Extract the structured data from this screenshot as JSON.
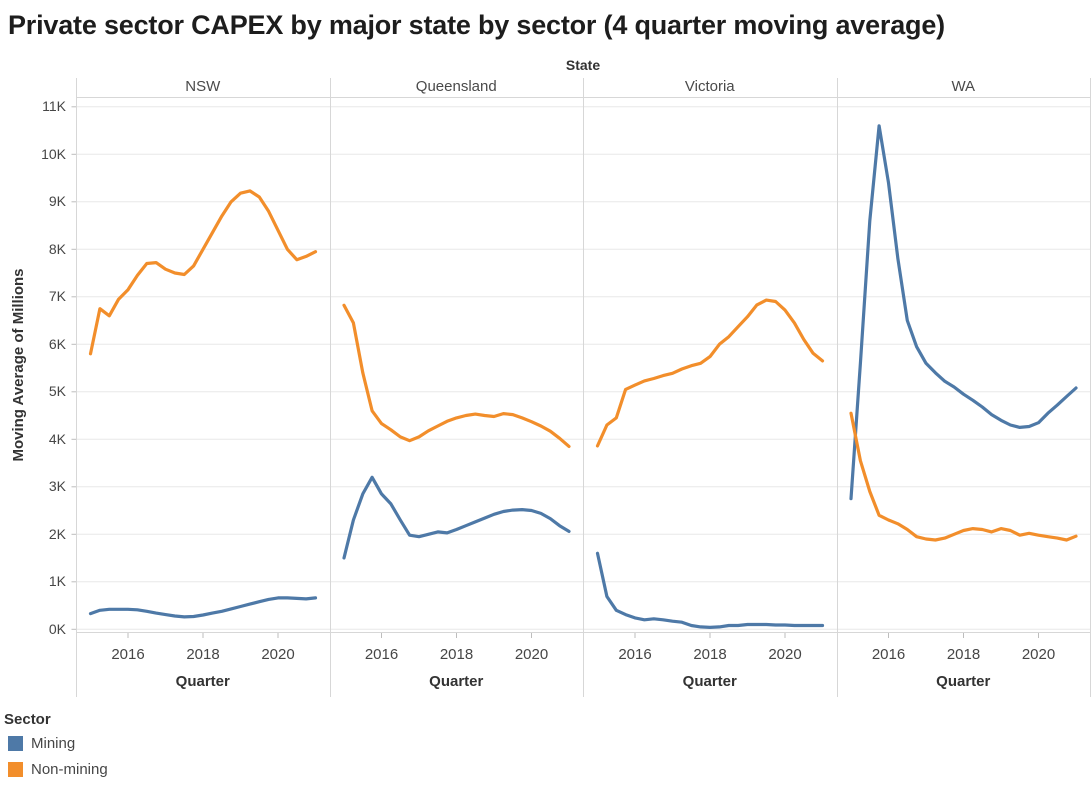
{
  "title": "Private sector CAPEX by major state by sector (4 quarter moving average)",
  "facet_header": {
    "label": "State",
    "panels": [
      "NSW",
      "Queensland",
      "Victoria",
      "WA"
    ]
  },
  "y_axis": {
    "title": "Moving Average of Millions",
    "tick_labels": [
      "0K",
      "1K",
      "2K",
      "3K",
      "4K",
      "5K",
      "6K",
      "7K",
      "8K",
      "9K",
      "10K",
      "11K"
    ]
  },
  "x_axis": {
    "title": "Quarter",
    "tick_labels": [
      "2016",
      "2018",
      "2020"
    ]
  },
  "legend": {
    "title": "Sector",
    "items": [
      {
        "label": "Mining",
        "color": "#4e79a7"
      },
      {
        "label": "Non-mining",
        "color": "#f28e2b"
      }
    ]
  },
  "chart_data": {
    "type": "line",
    "title": "Private sector CAPEX by major state by sector (4 quarter moving average)",
    "faceted_by": "State",
    "facets": [
      "NSW",
      "Queensland",
      "Victoria",
      "WA"
    ],
    "xlabel": "Quarter",
    "ylabel": "Moving Average of Millions",
    "ylim": [
      0,
      11000
    ],
    "y_gridline_step": 1000,
    "x_ticks": [
      2016,
      2018,
      2020
    ],
    "grid": true,
    "legend_position": "bottom-left",
    "x": [
      2015.0,
      2015.25,
      2015.5,
      2015.75,
      2016.0,
      2016.25,
      2016.5,
      2016.75,
      2017.0,
      2017.25,
      2017.5,
      2017.75,
      2018.0,
      2018.25,
      2018.5,
      2018.75,
      2019.0,
      2019.25,
      2019.5,
      2019.75,
      2020.0,
      2020.25,
      2020.5,
      2020.75,
      2021.0
    ],
    "series": [
      {
        "name": "Mining",
        "color": "#4e79a7",
        "values_by_facet": {
          "NSW": [
            330,
            400,
            420,
            420,
            420,
            410,
            380,
            340,
            310,
            280,
            260,
            270,
            300,
            340,
            380,
            430,
            480,
            530,
            580,
            630,
            660,
            660,
            650,
            640,
            660
          ],
          "Queensland": [
            1500,
            2300,
            2850,
            3200,
            2850,
            2640,
            2300,
            1980,
            1950,
            2000,
            2050,
            2030,
            2100,
            2180,
            2260,
            2340,
            2420,
            2480,
            2510,
            2520,
            2500,
            2440,
            2330,
            2180,
            2060
          ],
          "Victoria": [
            1600,
            690,
            400,
            310,
            240,
            200,
            220,
            200,
            170,
            150,
            80,
            50,
            40,
            50,
            80,
            80,
            100,
            100,
            100,
            90,
            90,
            80,
            80,
            80,
            80
          ],
          "WA": [
            2750,
            5600,
            8600,
            10600,
            9400,
            7800,
            6500,
            5950,
            5600,
            5400,
            5220,
            5100,
            4950,
            4820,
            4680,
            4520,
            4400,
            4300,
            4250,
            4270,
            4350,
            4550,
            4720,
            4900,
            5080
          ]
        }
      },
      {
        "name": "Non-mining",
        "color": "#f28e2b",
        "values_by_facet": {
          "NSW": [
            5800,
            6750,
            6600,
            6950,
            7150,
            7450,
            7700,
            7720,
            7580,
            7500,
            7470,
            7650,
            8000,
            8350,
            8700,
            9000,
            9180,
            9230,
            9100,
            8800,
            8400,
            8000,
            7780,
            7850,
            7950
          ],
          "Queensland": [
            6820,
            6450,
            5400,
            4600,
            4330,
            4200,
            4050,
            3970,
            4050,
            4180,
            4280,
            4380,
            4450,
            4500,
            4530,
            4500,
            4480,
            4540,
            4520,
            4450,
            4370,
            4280,
            4170,
            4020,
            3850
          ],
          "Victoria": [
            3860,
            4300,
            4450,
            5050,
            5140,
            5230,
            5280,
            5340,
            5390,
            5480,
            5550,
            5600,
            5740,
            6000,
            6160,
            6370,
            6580,
            6830,
            6930,
            6900,
            6720,
            6450,
            6100,
            5810,
            5650
          ],
          "WA": [
            4550,
            3550,
            2900,
            2400,
            2300,
            2220,
            2100,
            1950,
            1900,
            1880,
            1920,
            2000,
            2080,
            2120,
            2100,
            2050,
            2120,
            2080,
            1980,
            2020,
            1980,
            1950,
            1920,
            1880,
            1960
          ]
        }
      }
    ]
  }
}
